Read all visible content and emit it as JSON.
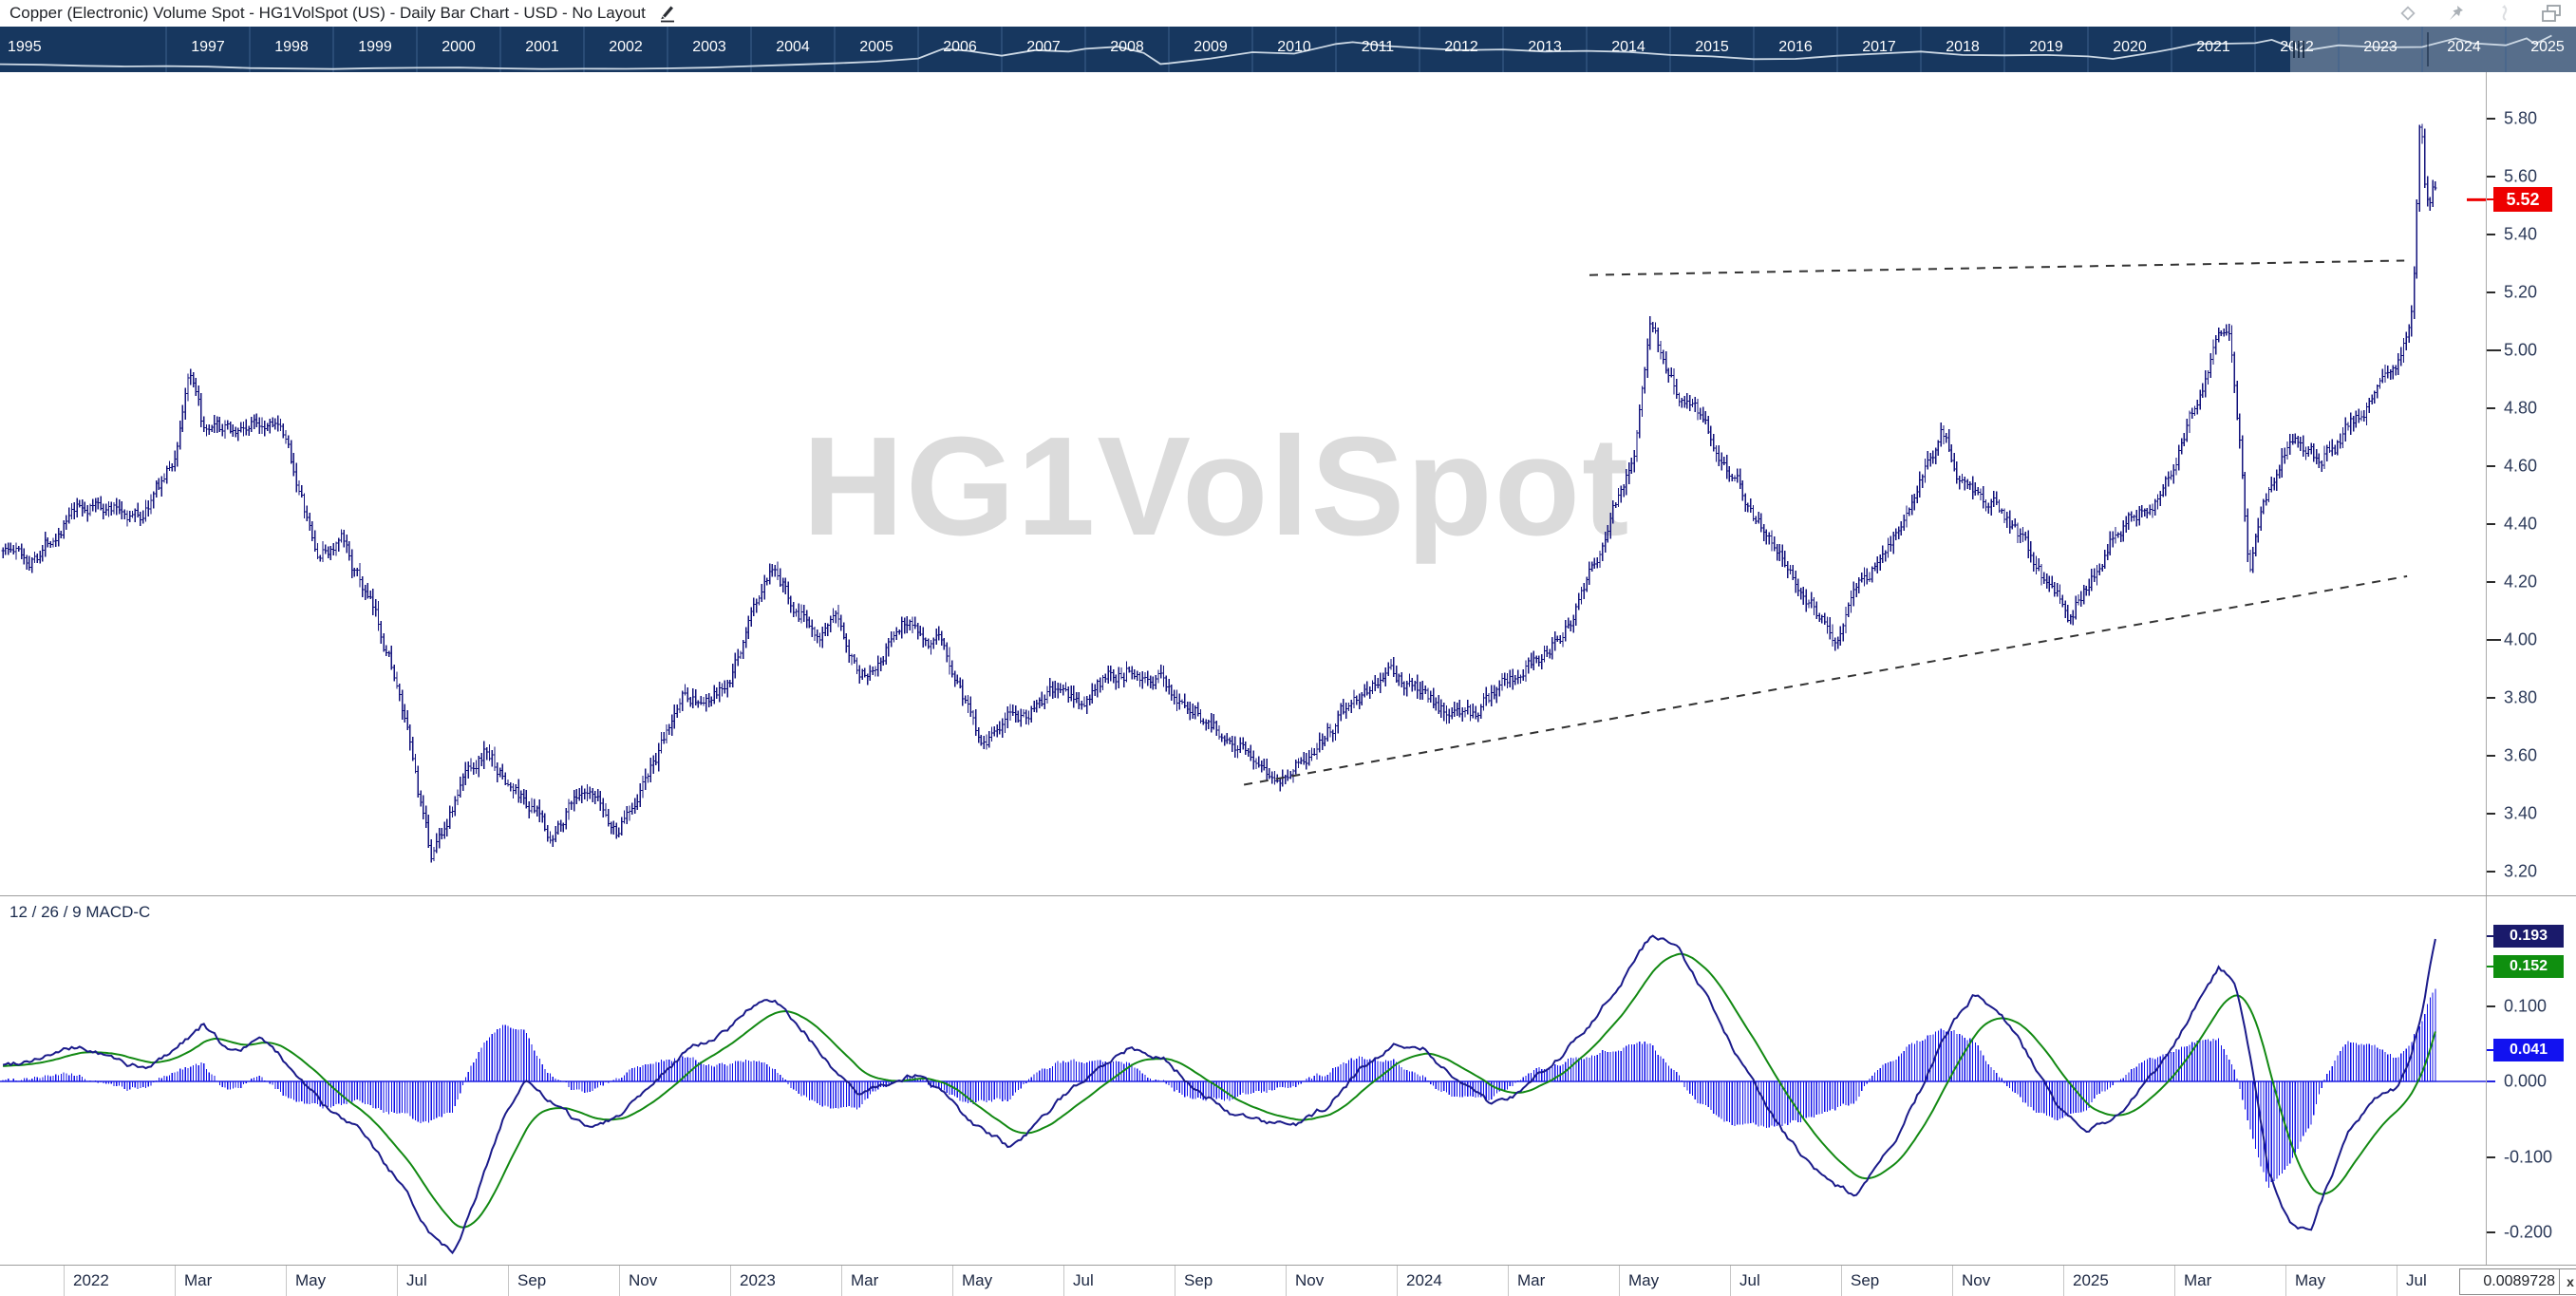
{
  "title_bar": {
    "title": "Copper (Electronic) Volume Spot - HG1VolSpot (US) - Daily Bar Chart - USD - No Layout",
    "icons": [
      "edit-pencil-icon",
      "diamond-icon",
      "pin-icon",
      "link-icon",
      "restore-window-icon"
    ]
  },
  "navigator": {
    "years": [
      "1995",
      "1997",
      "1998",
      "1999",
      "2000",
      "2001",
      "2002",
      "2003",
      "2004",
      "2005",
      "2006",
      "2007",
      "2008",
      "2009",
      "2010",
      "2011",
      "2012",
      "2013",
      "2014",
      "2015",
      "2016",
      "2017",
      "2018",
      "2019",
      "2020",
      "2021",
      "2022",
      "2023",
      "2024",
      "2025"
    ],
    "selection_start_label": "2022"
  },
  "main_chart": {
    "watermark": "HG1VolSpot",
    "last_price_label": "5.52"
  },
  "macd_panel": {
    "label": "12 / 26 / 9 MACD-C",
    "macd_value_label": "0.193",
    "signal_value_label": "0.152",
    "hist_value_label": "0.041"
  },
  "x_axis": {
    "labels": [
      "2022",
      "Mar",
      "May",
      "Jul",
      "Sep",
      "Nov",
      "2023",
      "Mar",
      "May",
      "Jul",
      "Sep",
      "Nov",
      "2024",
      "Mar",
      "May",
      "Jul",
      "Sep",
      "Nov",
      "2025",
      "Mar",
      "May",
      "Jul"
    ]
  },
  "status": {
    "value": "0.0089728",
    "close_label": "x"
  },
  "colors": {
    "navigator_bg": "#17375f",
    "navigator_divider": "#3d608c",
    "navigator_text": "#ffffff",
    "sparkline": "#ccd8e4",
    "price_bar": "#13137c",
    "macd_line": "#1a1a8a",
    "signal_line": "#128912",
    "histogram": "#0f0fe8",
    "zero_line": "#2222e0",
    "last_price_box": "#ee0000",
    "macd_box": "#1a1a6b",
    "signal_box": "#0f8f0f",
    "hist_box": "#1212f0",
    "axis_text": "#2c3a59",
    "trendline": "#333333",
    "watermark": "#dbdbdb"
  },
  "chart_data": [
    {
      "name": "price",
      "type": "bar",
      "title": "HG1VolSpot (US) daily bars",
      "x_unit": "months_since_Jan_2022",
      "x_range": [
        -1.15,
        42.72
      ],
      "ylim": [
        3.1,
        5.95
      ],
      "y_ticks": [
        5.8,
        5.6,
        5.4,
        5.2,
        5.0,
        4.8,
        4.6,
        4.4,
        4.2,
        4.0,
        3.8,
        3.6,
        3.4,
        3.2
      ],
      "last_price": 5.52,
      "anchors": [
        [
          -1.15,
          4.33
        ],
        [
          -0.6,
          4.28
        ],
        [
          0.0,
          4.42
        ],
        [
          0.7,
          4.47
        ],
        [
          1.4,
          4.43
        ],
        [
          2.0,
          4.62
        ],
        [
          2.25,
          4.93
        ],
        [
          2.55,
          4.68
        ],
        [
          2.9,
          4.7
        ],
        [
          3.3,
          4.73
        ],
        [
          3.8,
          4.79
        ],
        [
          4.2,
          4.55
        ],
        [
          4.55,
          4.28
        ],
        [
          5.0,
          4.33
        ],
        [
          5.5,
          4.12
        ],
        [
          5.9,
          3.93
        ],
        [
          6.3,
          3.55
        ],
        [
          6.6,
          3.24
        ],
        [
          6.9,
          3.38
        ],
        [
          7.3,
          3.56
        ],
        [
          7.6,
          3.63
        ],
        [
          8.0,
          3.5
        ],
        [
          8.4,
          3.43
        ],
        [
          8.8,
          3.31
        ],
        [
          9.2,
          3.48
        ],
        [
          9.6,
          3.41
        ],
        [
          9.95,
          3.33
        ],
        [
          10.35,
          3.49
        ],
        [
          10.8,
          3.63
        ],
        [
          11.2,
          3.83
        ],
        [
          11.6,
          3.78
        ],
        [
          12.0,
          3.83
        ],
        [
          12.4,
          4.1
        ],
        [
          12.7,
          4.21
        ],
        [
          13.1,
          4.13
        ],
        [
          13.5,
          4.06
        ],
        [
          14.0,
          4.04
        ],
        [
          14.4,
          3.9
        ],
        [
          14.8,
          4.0
        ],
        [
          15.2,
          4.08
        ],
        [
          15.7,
          4.0
        ],
        [
          16.1,
          3.86
        ],
        [
          16.5,
          3.67
        ],
        [
          16.9,
          3.72
        ],
        [
          17.3,
          3.75
        ],
        [
          17.8,
          3.81
        ],
        [
          18.3,
          3.77
        ],
        [
          18.8,
          3.86
        ],
        [
          19.3,
          3.93
        ],
        [
          19.8,
          3.85
        ],
        [
          20.3,
          3.77
        ],
        [
          20.8,
          3.7
        ],
        [
          21.3,
          3.64
        ],
        [
          21.8,
          3.56
        ],
        [
          22.3,
          3.58
        ],
        [
          22.8,
          3.7
        ],
        [
          23.3,
          3.81
        ],
        [
          23.8,
          3.89
        ],
        [
          24.3,
          3.85
        ],
        [
          24.8,
          3.77
        ],
        [
          25.3,
          3.73
        ],
        [
          25.8,
          3.81
        ],
        [
          26.3,
          3.89
        ],
        [
          26.8,
          4.0
        ],
        [
          27.2,
          4.11
        ],
        [
          27.6,
          4.3
        ],
        [
          28.0,
          4.5
        ],
        [
          28.3,
          4.68
        ],
        [
          28.55,
          5.12
        ],
        [
          28.8,
          4.96
        ],
        [
          29.2,
          4.83
        ],
        [
          29.6,
          4.73
        ],
        [
          30.0,
          4.61
        ],
        [
          30.5,
          4.43
        ],
        [
          31.0,
          4.29
        ],
        [
          31.5,
          4.13
        ],
        [
          31.9,
          4.02
        ],
        [
          32.3,
          4.19
        ],
        [
          32.8,
          4.31
        ],
        [
          33.3,
          4.46
        ],
        [
          33.8,
          4.69
        ],
        [
          34.1,
          4.59
        ],
        [
          34.5,
          4.49
        ],
        [
          34.9,
          4.43
        ],
        [
          35.3,
          4.33
        ],
        [
          35.7,
          4.21
        ],
        [
          36.1,
          4.09
        ],
        [
          36.5,
          4.23
        ],
        [
          36.9,
          4.36
        ],
        [
          37.3,
          4.43
        ],
        [
          37.7,
          4.53
        ],
        [
          38.1,
          4.69
        ],
        [
          38.5,
          4.89
        ],
        [
          38.8,
          5.11
        ],
        [
          39.0,
          5.05
        ],
        [
          39.2,
          4.62
        ],
        [
          39.35,
          4.23
        ],
        [
          39.6,
          4.49
        ],
        [
          39.9,
          4.63
        ],
        [
          40.2,
          4.69
        ],
        [
          40.6,
          4.61
        ],
        [
          41.0,
          4.69
        ],
        [
          41.4,
          4.81
        ],
        [
          41.8,
          4.93
        ],
        [
          42.1,
          5.01
        ],
        [
          42.3,
          5.18
        ],
        [
          42.38,
          5.56
        ],
        [
          42.43,
          5.88
        ],
        [
          42.5,
          5.6
        ],
        [
          42.58,
          5.47
        ],
        [
          42.66,
          5.57
        ],
        [
          42.72,
          5.52
        ]
      ],
      "trendlines": {
        "upper_dashed": [
          [
            27.47,
            5.26
          ],
          [
            42.14,
            5.31
          ]
        ],
        "lower_dashed": [
          [
            21.25,
            3.5
          ],
          [
            42.19,
            4.22
          ]
        ]
      }
    },
    {
      "name": "macd",
      "type": "line+histogram",
      "params": [
        12,
        26,
        9
      ],
      "y_ticks": [
        0.1,
        0.0,
        -0.1,
        -0.2
      ],
      "macd_last": 0.193,
      "signal_last": 0.152,
      "hist_last": 0.041,
      "anchors": [
        [
          -1.15,
          0.02
        ],
        [
          -0.3,
          0.035
        ],
        [
          0.3,
          0.045
        ],
        [
          0.9,
          0.03
        ],
        [
          1.5,
          0.015
        ],
        [
          2.1,
          0.05
        ],
        [
          2.5,
          0.075
        ],
        [
          3.0,
          0.04
        ],
        [
          3.6,
          0.055
        ],
        [
          4.2,
          0.01
        ],
        [
          4.8,
          -0.04
        ],
        [
          5.4,
          -0.07
        ],
        [
          6.0,
          -0.13
        ],
        [
          6.6,
          -0.2
        ],
        [
          7.0,
          -0.225
        ],
        [
          7.4,
          -0.16
        ],
        [
          7.9,
          -0.05
        ],
        [
          8.3,
          0.0
        ],
        [
          8.8,
          -0.03
        ],
        [
          9.4,
          -0.06
        ],
        [
          10.0,
          -0.045
        ],
        [
          10.6,
          0.0
        ],
        [
          11.2,
          0.04
        ],
        [
          11.8,
          0.06
        ],
        [
          12.4,
          0.1
        ],
        [
          12.8,
          0.105
        ],
        [
          13.3,
          0.07
        ],
        [
          13.8,
          0.02
        ],
        [
          14.3,
          -0.02
        ],
        [
          14.9,
          0.0
        ],
        [
          15.4,
          0.01
        ],
        [
          15.9,
          -0.02
        ],
        [
          16.4,
          -0.06
        ],
        [
          17.0,
          -0.085
        ],
        [
          17.5,
          -0.06
        ],
        [
          18.0,
          -0.02
        ],
        [
          18.6,
          0.02
        ],
        [
          19.2,
          0.045
        ],
        [
          19.8,
          0.03
        ],
        [
          20.4,
          -0.01
        ],
        [
          21.0,
          -0.04
        ],
        [
          21.6,
          -0.055
        ],
        [
          22.2,
          -0.06
        ],
        [
          22.8,
          -0.03
        ],
        [
          23.4,
          0.02
        ],
        [
          24.0,
          0.05
        ],
        [
          24.5,
          0.045
        ],
        [
          25.1,
          0.0
        ],
        [
          25.7,
          -0.03
        ],
        [
          26.3,
          -0.01
        ],
        [
          26.9,
          0.03
        ],
        [
          27.5,
          0.08
        ],
        [
          28.1,
          0.14
        ],
        [
          28.6,
          0.195
        ],
        [
          29.0,
          0.185
        ],
        [
          29.5,
          0.12
        ],
        [
          30.1,
          0.04
        ],
        [
          30.7,
          -0.04
        ],
        [
          31.3,
          -0.1
        ],
        [
          31.9,
          -0.14
        ],
        [
          32.3,
          -0.15
        ],
        [
          32.9,
          -0.09
        ],
        [
          33.5,
          0.0
        ],
        [
          34.0,
          0.08
        ],
        [
          34.4,
          0.115
        ],
        [
          34.9,
          0.09
        ],
        [
          35.4,
          0.03
        ],
        [
          35.9,
          -0.03
        ],
        [
          36.4,
          -0.065
        ],
        [
          36.9,
          -0.05
        ],
        [
          37.4,
          -0.01
        ],
        [
          37.9,
          0.04
        ],
        [
          38.4,
          0.1
        ],
        [
          38.8,
          0.15
        ],
        [
          39.1,
          0.13
        ],
        [
          39.4,
          0.02
        ],
        [
          39.7,
          -0.12
        ],
        [
          40.1,
          -0.19
        ],
        [
          40.45,
          -0.195
        ],
        [
          40.8,
          -0.13
        ],
        [
          41.2,
          -0.06
        ],
        [
          41.6,
          -0.025
        ],
        [
          42.0,
          -0.01
        ],
        [
          42.25,
          0.03
        ],
        [
          42.45,
          0.09
        ],
        [
          42.6,
          0.15
        ],
        [
          42.72,
          0.193
        ]
      ]
    },
    {
      "name": "navigator_sparkline",
      "type": "line",
      "x_unit": "year",
      "anchors": [
        [
          1995,
          1.38
        ],
        [
          1995.5,
          1.3
        ],
        [
          1996,
          1.15
        ],
        [
          1996.5,
          1.05
        ],
        [
          1997,
          1.1
        ],
        [
          1997.5,
          1.02
        ],
        [
          1998,
          0.82
        ],
        [
          1998.5,
          0.75
        ],
        [
          1999,
          0.68
        ],
        [
          1999.5,
          0.8
        ],
        [
          2000,
          0.85
        ],
        [
          2000.5,
          0.88
        ],
        [
          2001,
          0.78
        ],
        [
          2001.5,
          0.68
        ],
        [
          2002,
          0.72
        ],
        [
          2002.5,
          0.7
        ],
        [
          2003,
          0.78
        ],
        [
          2003.5,
          0.88
        ],
        [
          2004,
          1.1
        ],
        [
          2004.5,
          1.3
        ],
        [
          2005,
          1.5
        ],
        [
          2005.5,
          1.75
        ],
        [
          2006,
          2.2
        ],
        [
          2006.3,
          3.6
        ],
        [
          2006.6,
          3.3
        ],
        [
          2007,
          2.6
        ],
        [
          2007.4,
          3.4
        ],
        [
          2007.8,
          3.2
        ],
        [
          2008,
          3.6
        ],
        [
          2008.4,
          3.9
        ],
        [
          2008.7,
          3.0
        ],
        [
          2008.9,
          1.4
        ],
        [
          2009,
          1.5
        ],
        [
          2009.5,
          2.2
        ],
        [
          2010,
          3.1
        ],
        [
          2010.5,
          2.9
        ],
        [
          2011,
          4.3
        ],
        [
          2011.2,
          4.55
        ],
        [
          2011.6,
          4.0
        ],
        [
          2012,
          3.7
        ],
        [
          2012.5,
          3.4
        ],
        [
          2013,
          3.5
        ],
        [
          2013.5,
          3.2
        ],
        [
          2014,
          3.3
        ],
        [
          2014.5,
          3.15
        ],
        [
          2015,
          2.7
        ],
        [
          2015.5,
          2.5
        ],
        [
          2016,
          2.1
        ],
        [
          2016.5,
          2.15
        ],
        [
          2017,
          2.6
        ],
        [
          2017.5,
          2.9
        ],
        [
          2018,
          3.2
        ],
        [
          2018.5,
          2.7
        ],
        [
          2019,
          2.65
        ],
        [
          2019.5,
          2.7
        ],
        [
          2020,
          2.5
        ],
        [
          2020.3,
          2.15
        ],
        [
          2020.8,
          3.1
        ],
        [
          2021,
          3.55
        ],
        [
          2021.3,
          4.3
        ],
        [
          2021.7,
          4.35
        ],
        [
          2022,
          4.42
        ],
        [
          2022.2,
          4.9
        ],
        [
          2022.55,
          3.25
        ],
        [
          2023,
          4.1
        ],
        [
          2023.5,
          3.8
        ],
        [
          2024,
          3.85
        ],
        [
          2024.4,
          5.1
        ],
        [
          2024.6,
          4.4
        ],
        [
          2025,
          4.1
        ],
        [
          2025.25,
          5.1
        ],
        [
          2025.35,
          4.3
        ],
        [
          2025.55,
          5.52
        ]
      ]
    }
  ]
}
